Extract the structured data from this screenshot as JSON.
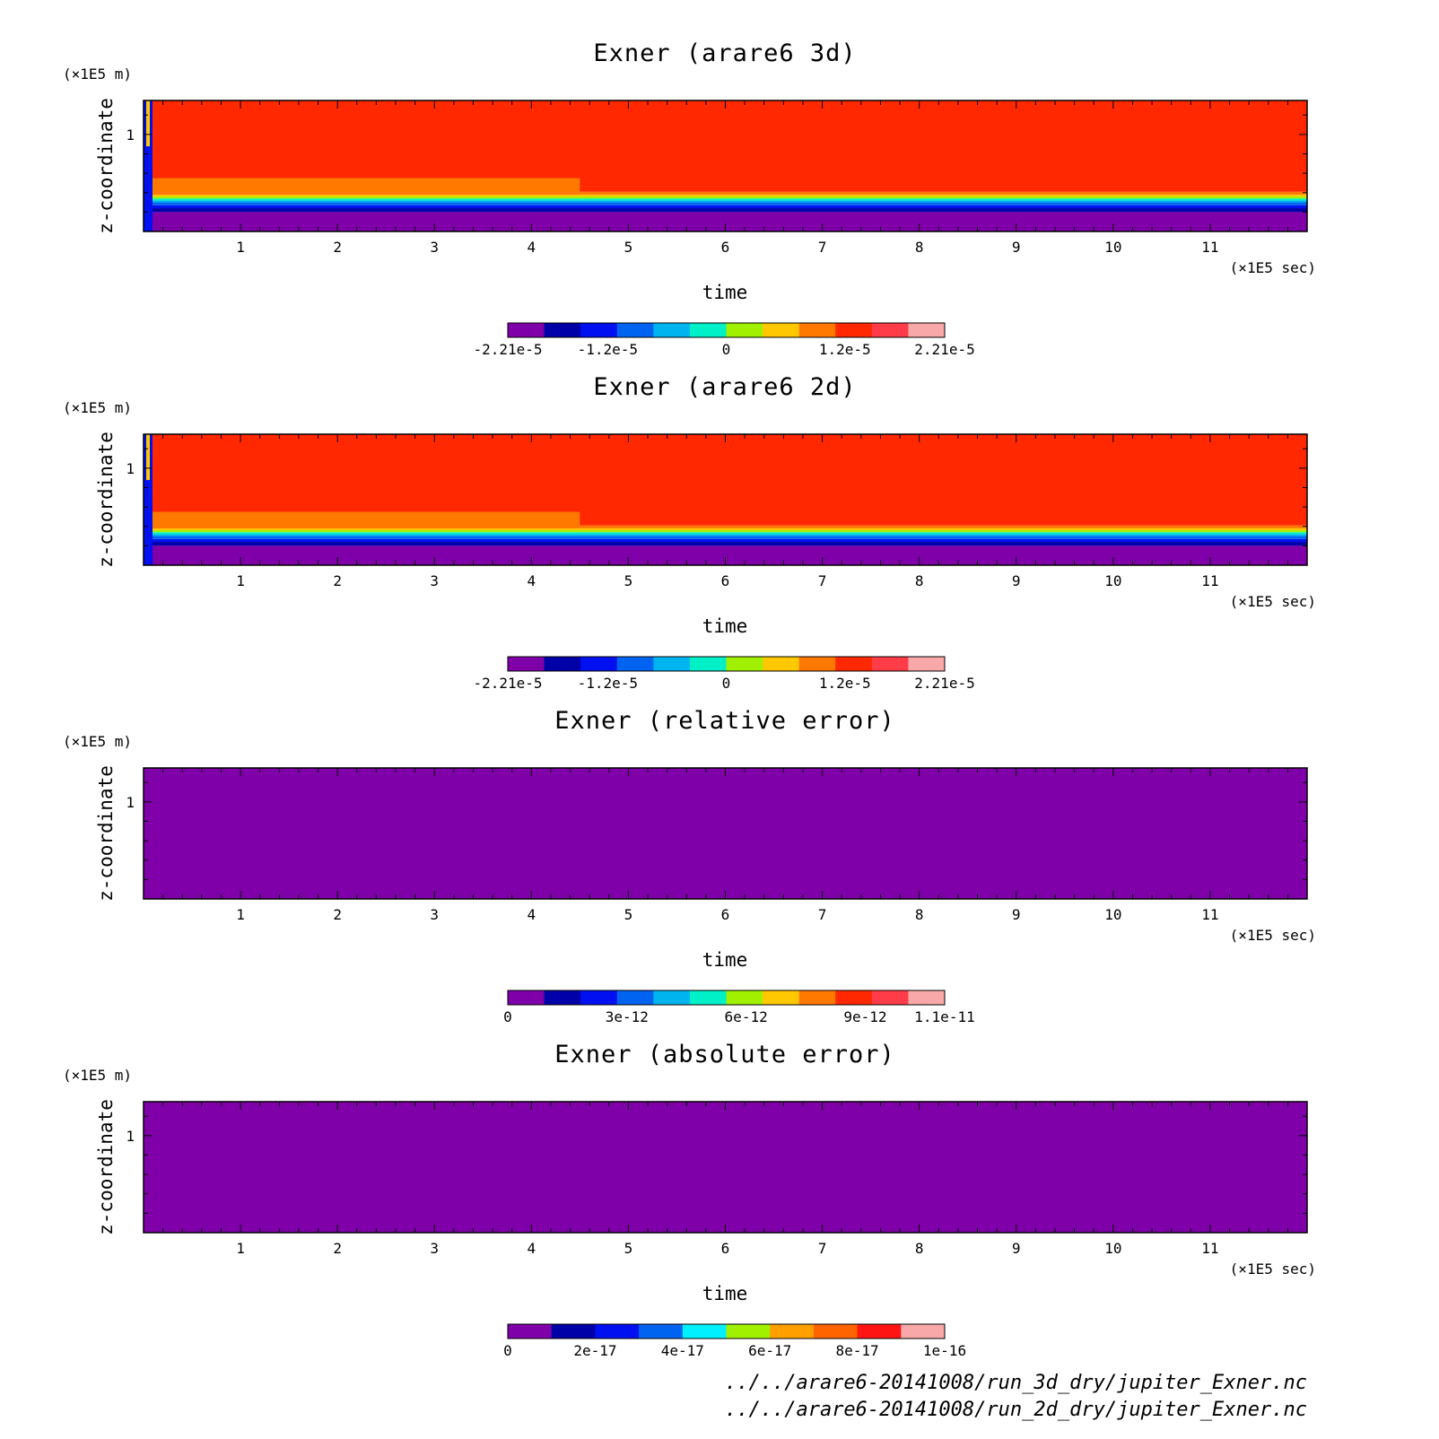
{
  "footer": {
    "lines": [
      "../../arare6-20141008/run_3d_dry/jupiter_Exner.nc",
      "../../arare6-20141008/run_2d_dry/jupiter_Exner.nc"
    ]
  },
  "chart_data": [
    {
      "type": "heatmap",
      "title": "Exner (arare6 3d)",
      "xlabel": "time",
      "x_unit": "(×1E5 sec)",
      "ylabel": "z-coordinate",
      "y_unit": "(×1E5 m)",
      "xticks": [
        1,
        2,
        3,
        4,
        5,
        6,
        7,
        8,
        9,
        10,
        11
      ],
      "yticks": [
        1
      ],
      "xlim": [
        0,
        12
      ],
      "ylim": [
        0,
        1.35
      ],
      "colorbar": {
        "colors": [
          "#7f00a8",
          "#0000a8",
          "#0010f0",
          "#0064f0",
          "#00b4f0",
          "#00f0c8",
          "#a0f000",
          "#ffc800",
          "#ff7800",
          "#ff2800",
          "#ff3c48",
          "#f8a8a8"
        ],
        "tick_labels": [
          "-2.21e-5",
          "-1.2e-5",
          "0",
          "1.2e-5",
          "2.21e-5"
        ],
        "range": [
          -2.21e-05,
          2.21e-05
        ]
      },
      "layers": [
        {
          "z_from": 0.0,
          "z_to": 0.2,
          "color": "#7f00a8"
        },
        {
          "z_from": 0.2,
          "z_to": 0.24,
          "color": "#0000a8"
        },
        {
          "z_from": 0.24,
          "z_to": 0.27,
          "color": "#0010f0"
        },
        {
          "z_from": 0.27,
          "z_to": 0.3,
          "color": "#0064f0"
        },
        {
          "z_from": 0.3,
          "z_to": 0.32,
          "color": "#00b4f0"
        },
        {
          "z_from": 0.32,
          "z_to": 0.34,
          "color": "#00f0c8"
        },
        {
          "z_from": 0.34,
          "z_to": 0.36,
          "color": "#a0f000"
        },
        {
          "z_from": 0.36,
          "z_to": 0.38,
          "color": "#ffc800"
        },
        {
          "z_from": 0.38,
          "z_to": 0.41,
          "color": "#ff7800"
        },
        {
          "z_from": 0.41,
          "z_to": 1.35,
          "color": "#ff2800"
        }
      ],
      "orange_tongue": {
        "t_end": 4.5,
        "z_from": 0.38,
        "z_to": 0.55,
        "color": "#ff7800"
      }
    },
    {
      "type": "heatmap",
      "title": "Exner (arare6 2d)",
      "xlabel": "time",
      "x_unit": "(×1E5 sec)",
      "ylabel": "z-coordinate",
      "y_unit": "(×1E5 m)",
      "xticks": [
        1,
        2,
        3,
        4,
        5,
        6,
        7,
        8,
        9,
        10,
        11
      ],
      "yticks": [
        1
      ],
      "xlim": [
        0,
        12
      ],
      "ylim": [
        0,
        1.35
      ],
      "colorbar": {
        "colors": [
          "#7f00a8",
          "#0000a8",
          "#0010f0",
          "#0064f0",
          "#00b4f0",
          "#00f0c8",
          "#a0f000",
          "#ffc800",
          "#ff7800",
          "#ff2800",
          "#ff3c48",
          "#f8a8a8"
        ],
        "tick_labels": [
          "-2.21e-5",
          "-1.2e-5",
          "0",
          "1.2e-5",
          "2.21e-5"
        ],
        "range": [
          -2.21e-05,
          2.21e-05
        ]
      },
      "layers": [
        {
          "z_from": 0.0,
          "z_to": 0.2,
          "color": "#7f00a8"
        },
        {
          "z_from": 0.2,
          "z_to": 0.24,
          "color": "#0000a8"
        },
        {
          "z_from": 0.24,
          "z_to": 0.27,
          "color": "#0010f0"
        },
        {
          "z_from": 0.27,
          "z_to": 0.3,
          "color": "#0064f0"
        },
        {
          "z_from": 0.3,
          "z_to": 0.32,
          "color": "#00b4f0"
        },
        {
          "z_from": 0.32,
          "z_to": 0.34,
          "color": "#00f0c8"
        },
        {
          "z_from": 0.34,
          "z_to": 0.36,
          "color": "#a0f000"
        },
        {
          "z_from": 0.36,
          "z_to": 0.38,
          "color": "#ffc800"
        },
        {
          "z_from": 0.38,
          "z_to": 0.41,
          "color": "#ff7800"
        },
        {
          "z_from": 0.41,
          "z_to": 1.35,
          "color": "#ff2800"
        }
      ],
      "orange_tongue": {
        "t_end": 4.5,
        "z_from": 0.38,
        "z_to": 0.55,
        "color": "#ff7800"
      }
    },
    {
      "type": "heatmap",
      "title": "Exner (relative error)",
      "xlabel": "time",
      "x_unit": "(×1E5 sec)",
      "ylabel": "z-coordinate",
      "y_unit": "(×1E5 m)",
      "xticks": [
        1,
        2,
        3,
        4,
        5,
        6,
        7,
        8,
        9,
        10,
        11
      ],
      "yticks": [
        1
      ],
      "xlim": [
        0,
        12
      ],
      "ylim": [
        0,
        1.35
      ],
      "colorbar": {
        "colors": [
          "#7f00a8",
          "#0000a8",
          "#0010f0",
          "#0064f0",
          "#00b4f0",
          "#00f0c8",
          "#a0f000",
          "#ffc800",
          "#ff7800",
          "#ff2800",
          "#ff3c48",
          "#f8a8a8"
        ],
        "tick_labels": [
          "0",
          "3e-12",
          "6e-12",
          "9e-12",
          "1.1e-11"
        ],
        "range": [
          0,
          1.1e-11
        ]
      },
      "layers": [
        {
          "z_from": 0.0,
          "z_to": 1.35,
          "color": "#7f00a8"
        }
      ]
    },
    {
      "type": "heatmap",
      "title": "Exner (absolute error)",
      "xlabel": "time",
      "x_unit": "(×1E5 sec)",
      "ylabel": "z-coordinate",
      "y_unit": "(×1E5 m)",
      "xticks": [
        1,
        2,
        3,
        4,
        5,
        6,
        7,
        8,
        9,
        10,
        11
      ],
      "yticks": [
        1
      ],
      "xlim": [
        0,
        12
      ],
      "ylim": [
        0,
        1.35
      ],
      "colorbar": {
        "colors": [
          "#7f00a8",
          "#0000a8",
          "#0010f0",
          "#0064f0",
          "#00f0ff",
          "#a0f000",
          "#ffa000",
          "#ff6400",
          "#ff1414",
          "#f8a8a8"
        ],
        "tick_labels": [
          "0",
          "2e-17",
          "4e-17",
          "6e-17",
          "8e-17",
          "1e-16"
        ],
        "range": [
          0,
          1e-16
        ]
      },
      "layers": [
        {
          "z_from": 0.0,
          "z_to": 1.35,
          "color": "#7f00a8"
        }
      ]
    }
  ]
}
